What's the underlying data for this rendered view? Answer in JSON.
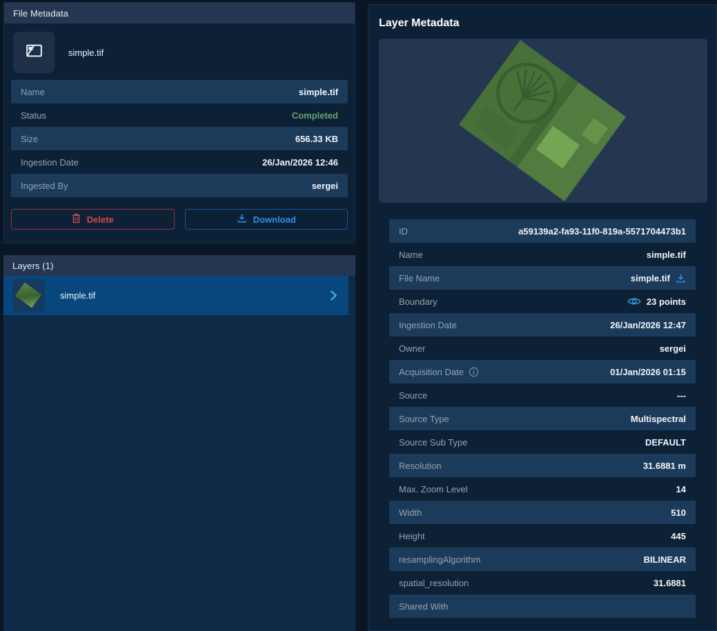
{
  "file_metadata": {
    "header": "File Metadata",
    "file_title": "simple.tif",
    "rows": [
      {
        "label": "Name",
        "value": "simple.tif"
      },
      {
        "label": "Status",
        "value": "Completed",
        "value_color": "#64a269"
      },
      {
        "label": "Size",
        "value": "656.33 KB"
      },
      {
        "label": "Ingestion Date",
        "value": "26/Jan/2026 12:46"
      },
      {
        "label": "Ingested By",
        "value": "sergei"
      }
    ],
    "buttons": {
      "delete": "Delete",
      "download": "Download"
    }
  },
  "layers": {
    "header": "Layers (1)",
    "items": [
      {
        "name": "simple.tif",
        "selected": true
      }
    ]
  },
  "layer_metadata": {
    "header": "Layer Metadata",
    "rows": [
      {
        "label": "ID",
        "value": "a59139a2-fa93-11f0-819a-5571704473b1"
      },
      {
        "label": "Name",
        "value": "simple.tif"
      },
      {
        "label": "File Name",
        "value": "simple.tif",
        "value_icon": "download"
      },
      {
        "label": "Boundary",
        "value": "23 points",
        "value_icon_before": "eye"
      },
      {
        "label": "Ingestion Date",
        "value": "26/Jan/2026 12:47"
      },
      {
        "label": "Owner",
        "value": "sergei"
      },
      {
        "label": "Acquisition Date",
        "value": "01/Jan/2026 01:15",
        "label_icon": "info"
      },
      {
        "label": "Source",
        "value": "---"
      },
      {
        "label": "Source Type",
        "value": "Multispectral"
      },
      {
        "label": "Source Sub Type",
        "value": "DEFAULT"
      },
      {
        "label": "Resolution",
        "value": "31.6881 m"
      },
      {
        "label": "Max. Zoom Level",
        "value": "14"
      },
      {
        "label": "Width",
        "value": "510"
      },
      {
        "label": "Height",
        "value": "445"
      },
      {
        "label": "resamplingAlgorithm",
        "value": "BILINEAR"
      },
      {
        "label": "spatial_resolution",
        "value": "31.6881"
      },
      {
        "label": "Shared With",
        "value": ""
      }
    ]
  },
  "icons": {
    "file_tile": "image-file-icon",
    "delete_button": "trash-icon",
    "download_button": "download-icon",
    "file_name_row": "download-icon",
    "boundary_row": "eye-icon",
    "acquisition_date_row": "info-icon",
    "layer_item": "chevron-right-icon"
  },
  "colors": {
    "page_bg": "#0b1624",
    "panel_bg": "#0d2136",
    "header_bar": "#243650",
    "row_highlight": "#1c3a59",
    "selected_layer": "#07477e",
    "accent_blue": "#2f8fe8",
    "status_green": "#64a269",
    "delete_red": "#cf4a52"
  }
}
